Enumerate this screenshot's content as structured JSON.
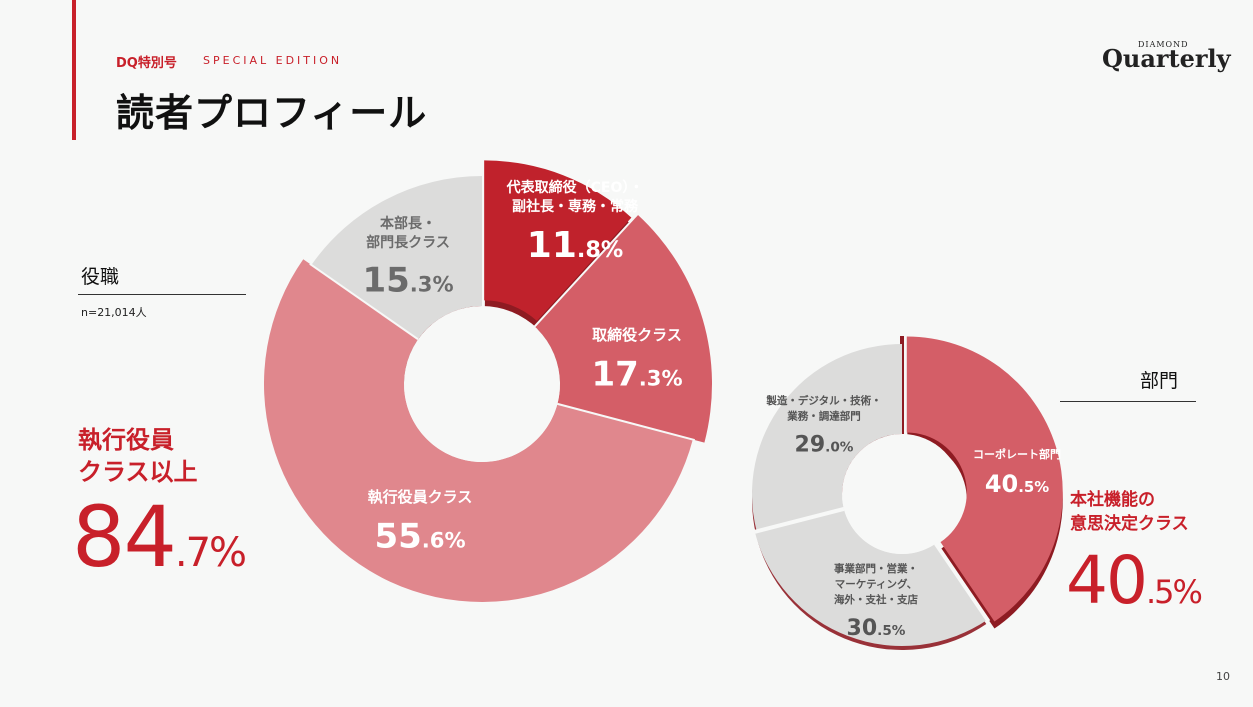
{
  "header": {
    "edition": "DQ特別号",
    "edition_sub": "SPECIAL EDITION",
    "title": "読者プロフィール",
    "logo_small": "DIAMOND",
    "logo": "Quarterly"
  },
  "role_section": {
    "label": "役職",
    "n_note": "n=21,014人",
    "highlight_caption_line1": "執行役員",
    "highlight_caption_line2": "クラス以上",
    "highlight_int": "84",
    "highlight_dec": ".7%"
  },
  "dept_section": {
    "label": "部門",
    "highlight_caption_line1": "本社機能の",
    "highlight_caption_line2": "意思決定クラス",
    "highlight_int": "40",
    "highlight_dec": ".5%"
  },
  "colors": {
    "accent": "#c8202a",
    "dark_red": "#c0222c",
    "mid_red": "#d45e67",
    "light_red": "#e0878d",
    "gray": "#dcdcdb",
    "shadow": "#8e1b22"
  },
  "chart_data": [
    {
      "type": "pie",
      "title": "役職",
      "slices": [
        {
          "label_lines": [
            "代表取締役（CEO）・",
            "副社長・専務・常務"
          ],
          "value_int": "11",
          "value_dec": ".8%",
          "value": 11.8,
          "color": "#c0222c"
        },
        {
          "label_lines": [
            "取締役クラス"
          ],
          "value_int": "17",
          "value_dec": ".3%",
          "value": 17.3,
          "color": "#d45e67"
        },
        {
          "label_lines": [
            "執行役員クラス"
          ],
          "value_int": "55",
          "value_dec": ".6%",
          "value": 55.6,
          "color": "#e0878d"
        },
        {
          "label_lines": [
            "本部長・",
            "部門長クラス"
          ],
          "value_int": "15",
          "value_dec": ".3%",
          "value": 15.3,
          "color": "#dcdcdb"
        }
      ]
    },
    {
      "type": "pie",
      "title": "部門",
      "slices": [
        {
          "label_lines": [
            "コーポレート部門"
          ],
          "value_int": "40",
          "value_dec": ".5%",
          "value": 40.5,
          "color": "#d45e67"
        },
        {
          "label_lines": [
            "事業部門・営業・",
            "マーケティング、",
            "海外・支社・支店"
          ],
          "value_int": "30",
          "value_dec": ".5%",
          "value": 30.5,
          "color": "#dcdcdb"
        },
        {
          "label_lines": [
            "製造・デジタル・技術・",
            "業務・調達部門"
          ],
          "value_int": "29",
          "value_dec": ".0%",
          "value": 29.0,
          "color": "#dcdcdb"
        }
      ]
    }
  ],
  "page_number": "10"
}
